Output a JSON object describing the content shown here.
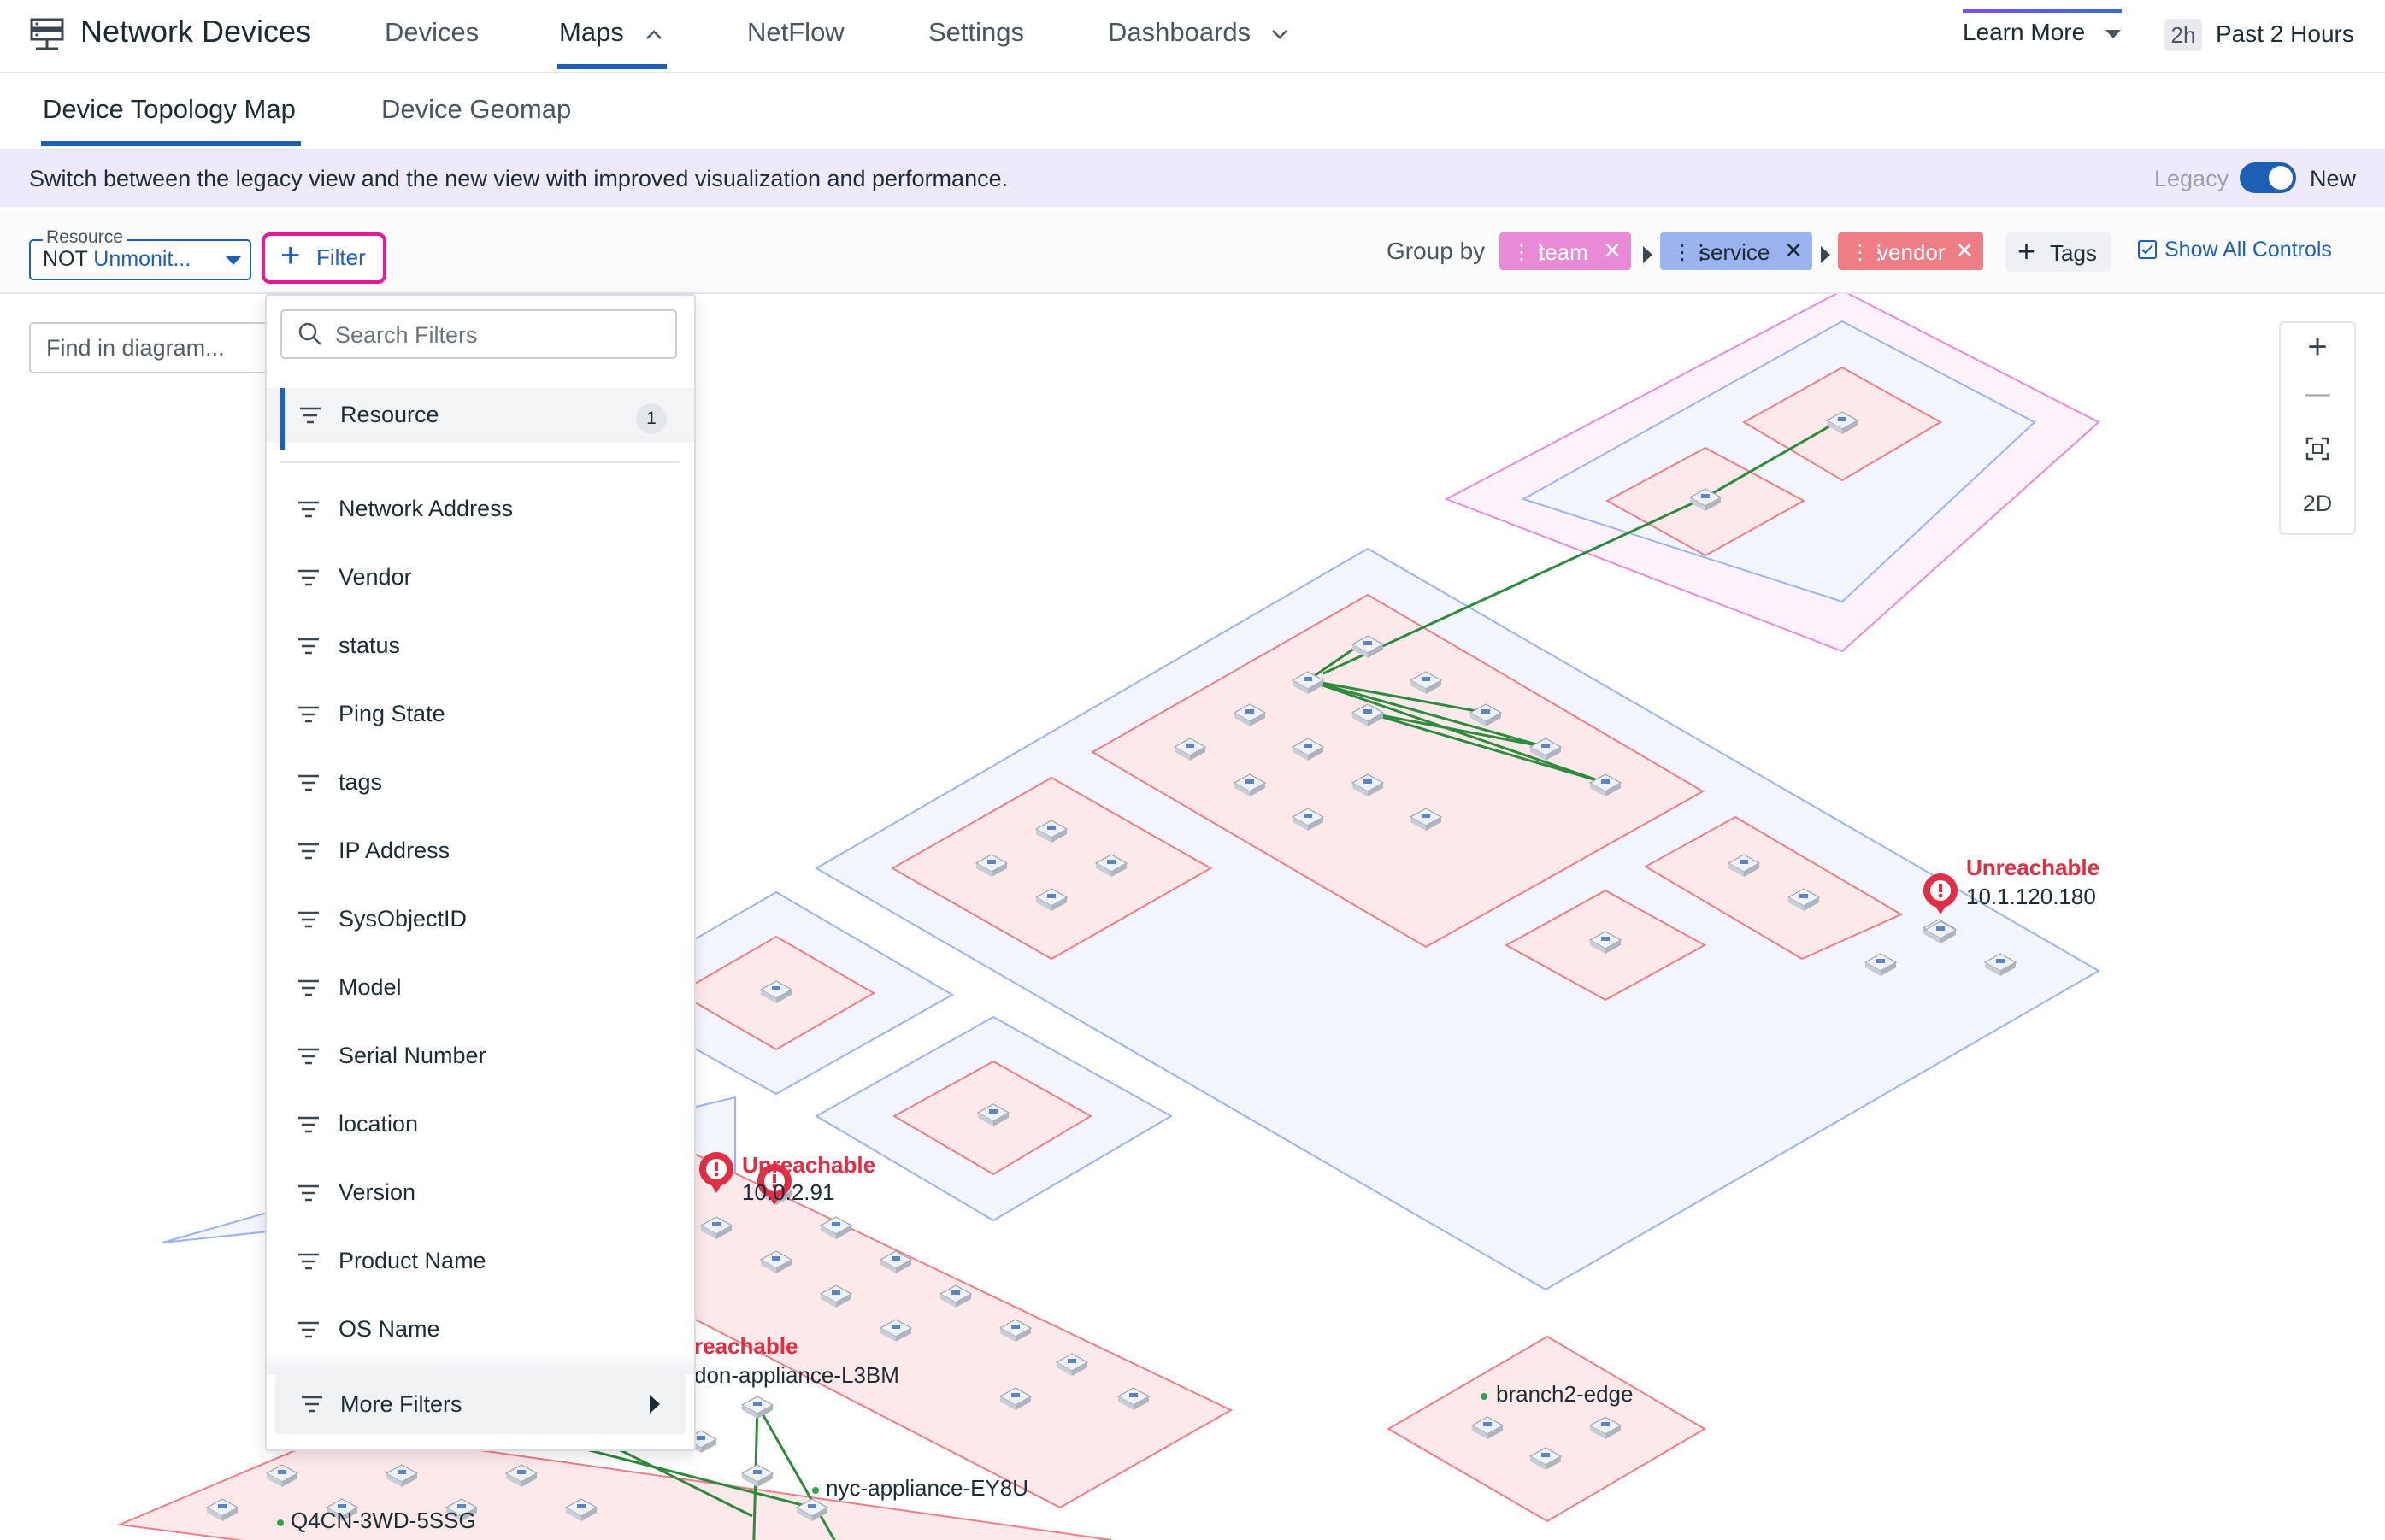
{
  "app": {
    "title": "Network Devices",
    "icon": "network-devices-icon"
  },
  "nav": {
    "items": [
      {
        "label": "Devices",
        "active": false
      },
      {
        "label": "Maps",
        "active": true
      },
      {
        "label": "NetFlow",
        "active": false
      },
      {
        "label": "Settings",
        "active": false
      },
      {
        "label": "Dashboards",
        "active": false
      }
    ],
    "learn_more": "Learn More",
    "time_badge": "2h",
    "time_label": "Past 2 Hours"
  },
  "subtabs": [
    {
      "label": "Device Topology Map",
      "active": true
    },
    {
      "label": "Device Geomap",
      "active": false
    }
  ],
  "banner": {
    "text": "Switch between the legacy view and the new view with improved visualization and performance.",
    "legacy_label": "Legacy",
    "new_label": "New",
    "toggle_on": true
  },
  "controls": {
    "resource_caption": "Resource",
    "resource_not": "NOT",
    "resource_value": "Unmonit...",
    "filter_label": "Filter",
    "group_by_label": "Group by",
    "group_chips": [
      {
        "label": "team",
        "color": "#e98ad6"
      },
      {
        "label": "service",
        "color": "#9bb3ef"
      },
      {
        "label": "vendor",
        "color": "#ef7d86"
      }
    ],
    "tags_label": "Tags",
    "show_all_label": "Show All Controls"
  },
  "map": {
    "find_placeholder": "Find in diagram...",
    "zoom": {
      "in": "+",
      "out": "—",
      "mode": "2D"
    },
    "unreachable_text": "Unreachable",
    "alerts": [
      {
        "status": "Unreachable",
        "address": "10.1.120.180"
      },
      {
        "status": "Unreachable",
        "address": "10.0.2.91"
      },
      {
        "status": "reachable",
        "address": "don-appliance-L3BM"
      }
    ],
    "device_labels": [
      "branch2-edge",
      "nyc-appliance-EY8U",
      "Q4CN-3WD-5SSG"
    ],
    "colors": {
      "team": "#e98ad6",
      "service": "#9bb3ef",
      "vendor": "#ef7d86",
      "link": "#2e8b3d",
      "alert": "#e02f44"
    }
  },
  "filter_panel": {
    "search_placeholder": "Search Filters",
    "selected": {
      "label": "Resource",
      "count": "1"
    },
    "items": [
      "Network Address",
      "Vendor",
      "status",
      "Ping State",
      "tags",
      "IP Address",
      "SysObjectID",
      "Model",
      "Serial Number",
      "location",
      "Version",
      "Product Name",
      "OS Name"
    ],
    "more_label": "More Filters"
  }
}
